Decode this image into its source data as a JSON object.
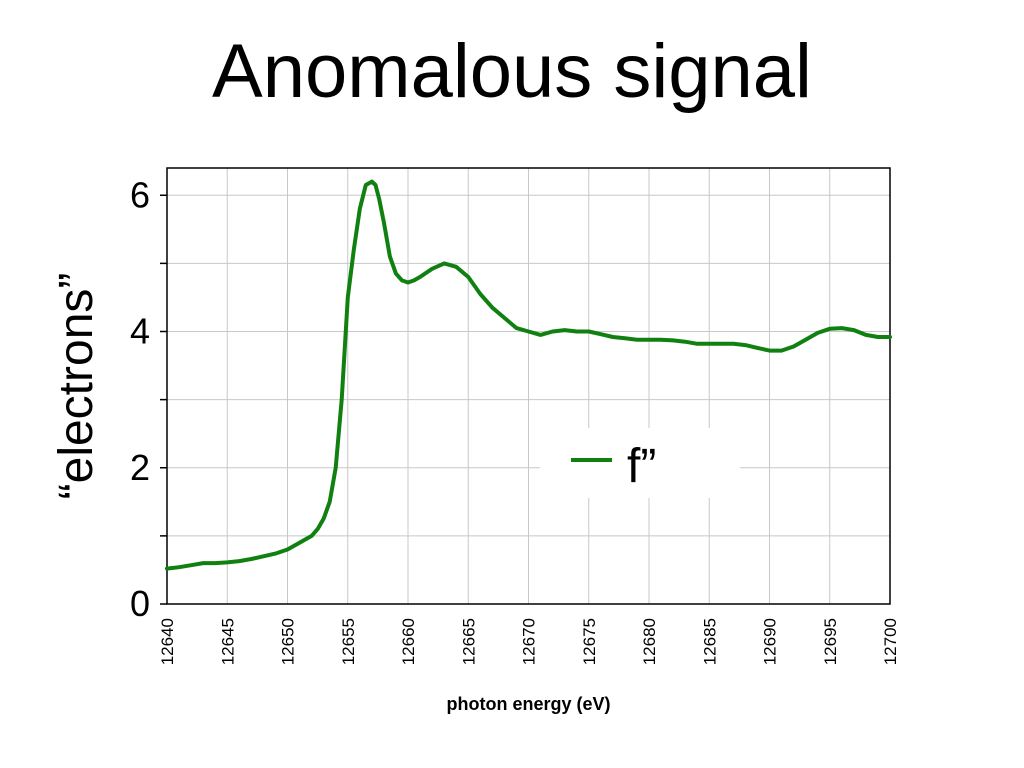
{
  "slide": {
    "title": "Anomalous signal"
  },
  "chart_data": {
    "type": "line",
    "title": "",
    "xlabel": "photon energy (eV)",
    "ylabel": "“electrons”",
    "xlim": [
      12640,
      12700
    ],
    "ylim": [
      0,
      6.4
    ],
    "x_ticks": [
      12640,
      12645,
      12650,
      12655,
      12660,
      12665,
      12670,
      12675,
      12680,
      12685,
      12690,
      12695,
      12700
    ],
    "y_ticks": [
      0,
      1,
      2,
      3,
      4,
      5,
      6
    ],
    "y_tick_labels": [
      "0",
      "",
      "2",
      "",
      "4",
      "",
      "6"
    ],
    "grid": true,
    "legend_position": "right-center",
    "series": [
      {
        "name": "f”",
        "color": "#108010",
        "x": [
          12640,
          12641,
          12642,
          12643,
          12644,
          12645,
          12646,
          12647,
          12648,
          12649,
          12650,
          12651,
          12652,
          12652.5,
          12653,
          12653.5,
          12654,
          12654.5,
          12655,
          12655.5,
          12656,
          12656.5,
          12657,
          12657.3,
          12657.6,
          12658,
          12658.5,
          12659,
          12659.5,
          12660,
          12660.5,
          12661,
          12662,
          12663,
          12664,
          12665,
          12666,
          12667,
          12668,
          12669,
          12670,
          12671,
          12672,
          12673,
          12674,
          12675,
          12676,
          12677,
          12678,
          12679,
          12680,
          12681,
          12682,
          12683,
          12684,
          12685,
          12686,
          12687,
          12688,
          12689,
          12690,
          12691,
          12692,
          12693,
          12694,
          12695,
          12696,
          12697,
          12698,
          12699,
          12700
        ],
        "y": [
          0.52,
          0.54,
          0.57,
          0.6,
          0.6,
          0.61,
          0.63,
          0.66,
          0.7,
          0.74,
          0.8,
          0.9,
          1.0,
          1.1,
          1.25,
          1.5,
          2.0,
          3.0,
          4.5,
          5.2,
          5.8,
          6.15,
          6.2,
          6.15,
          5.95,
          5.6,
          5.1,
          4.85,
          4.75,
          4.72,
          4.75,
          4.8,
          4.92,
          5.0,
          4.95,
          4.8,
          4.55,
          4.35,
          4.2,
          4.05,
          4.0,
          3.95,
          4.0,
          4.02,
          4.0,
          4.0,
          3.96,
          3.92,
          3.9,
          3.88,
          3.88,
          3.88,
          3.87,
          3.85,
          3.82,
          3.82,
          3.82,
          3.82,
          3.8,
          3.76,
          3.72,
          3.72,
          3.78,
          3.88,
          3.98,
          4.04,
          4.05,
          4.02,
          3.95,
          3.92,
          3.92
        ]
      }
    ]
  }
}
